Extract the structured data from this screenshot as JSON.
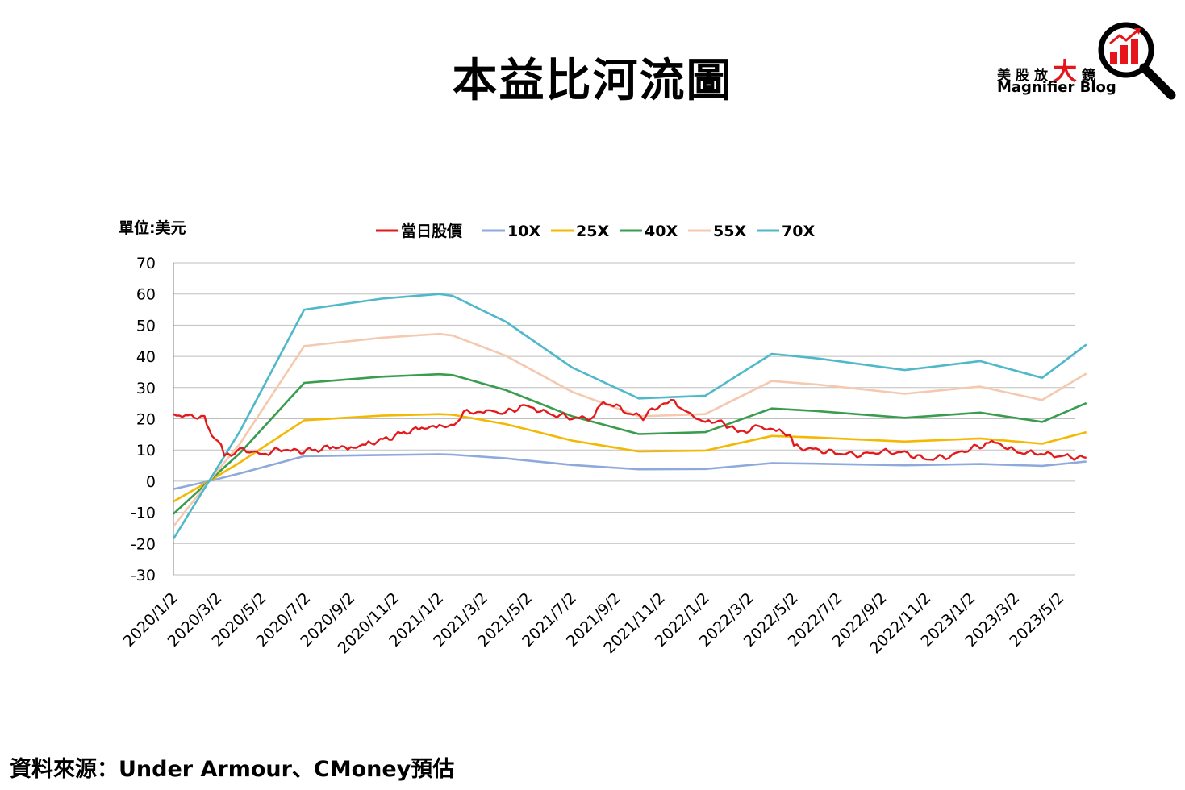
{
  "header": {
    "title": "本益比河流圖"
  },
  "logo": {
    "cn_part1": "美股放",
    "cn_big": "大",
    "cn_part2": "鏡",
    "en": "Magnifier Blog",
    "icon": "magnifier-bar-chart-icon"
  },
  "footer": {
    "source": "資料來源：Under Armour、CMoney預估"
  },
  "colors": {
    "price": "#e31a1c",
    "x10": "#8ea9db",
    "x25": "#f5b800",
    "x40": "#3a9c4e",
    "x55": "#f4c9b0",
    "x70": "#4fb8c9",
    "grid": "#bfbfbf",
    "brand_red": "#e5151b"
  },
  "chart_data": {
    "type": "line",
    "unit_label": "單位:美元",
    "ylim": [
      -30,
      70
    ],
    "yticks": [
      70,
      60,
      50,
      40,
      30,
      20,
      10,
      0,
      -10,
      -20,
      -30
    ],
    "categories": [
      "2020/1/2",
      "2020/3/2",
      "2020/5/2",
      "2020/7/2",
      "2020/9/2",
      "2020/11/2",
      "2021/1/2",
      "2021/3/2",
      "2021/5/2",
      "2021/7/2",
      "2021/9/2",
      "2021/11/2",
      "2022/1/2",
      "2022/3/2",
      "2022/5/2",
      "2022/7/2",
      "2022/9/2",
      "2022/11/2",
      "2023/1/2",
      "2023/3/2",
      "2023/5/2"
    ],
    "legend_position": "top",
    "grid": true,
    "series": [
      {
        "name": "當日股價",
        "key": "price",
        "points": [
          [
            0,
            21.5
          ],
          [
            0.2,
            20.8
          ],
          [
            0.4,
            21
          ],
          [
            0.7,
            20.5
          ],
          [
            0.8,
            16.5
          ],
          [
            1.0,
            13
          ],
          [
            1.15,
            9
          ],
          [
            1.3,
            8.5
          ],
          [
            1.5,
            10
          ],
          [
            1.8,
            9.5
          ],
          [
            2.0,
            8.5
          ],
          [
            2.3,
            10
          ],
          [
            2.5,
            10.5
          ],
          [
            2.8,
            9.5
          ],
          [
            3.2,
            10
          ],
          [
            3.6,
            11
          ],
          [
            4.0,
            10.5
          ],
          [
            4.4,
            12
          ],
          [
            4.8,
            13.5
          ],
          [
            5.2,
            15.5
          ],
          [
            5.6,
            17
          ],
          [
            6.0,
            17.5
          ],
          [
            6.4,
            18
          ],
          [
            6.55,
            22
          ],
          [
            7.0,
            22.5
          ],
          [
            7.5,
            22
          ],
          [
            7.9,
            24
          ],
          [
            8.2,
            23
          ],
          [
            8.5,
            21.5
          ],
          [
            8.8,
            21
          ],
          [
            9.0,
            20.5
          ],
          [
            9.3,
            20
          ],
          [
            9.5,
            21
          ],
          [
            9.7,
            25.5
          ],
          [
            10.0,
            24
          ],
          [
            10.3,
            21.5
          ],
          [
            10.6,
            20.5
          ],
          [
            11.0,
            25
          ],
          [
            11.3,
            25.5
          ],
          [
            11.6,
            22
          ],
          [
            12.0,
            18.5
          ],
          [
            12.3,
            19.5
          ],
          [
            12.55,
            17.5
          ],
          [
            12.8,
            15.5
          ],
          [
            13.2,
            17.5
          ],
          [
            13.6,
            16
          ],
          [
            13.9,
            15
          ],
          [
            14.0,
            11
          ],
          [
            14.5,
            10
          ],
          [
            15.0,
            9
          ],
          [
            15.5,
            8.5
          ],
          [
            16.0,
            9.5
          ],
          [
            16.5,
            9
          ],
          [
            17.0,
            7
          ],
          [
            17.5,
            8
          ],
          [
            18.0,
            10.5
          ],
          [
            18.4,
            12
          ],
          [
            18.6,
            12.5
          ],
          [
            18.9,
            10
          ],
          [
            19.2,
            9
          ],
          [
            19.5,
            9
          ],
          [
            19.8,
            8.5
          ],
          [
            20.1,
            8
          ],
          [
            20.4,
            7.5
          ],
          [
            20.6,
            7.5
          ]
        ]
      },
      {
        "name": "10X",
        "key": "x10",
        "points": [
          [
            0,
            -2.5
          ],
          [
            0.8,
            0
          ],
          [
            1.5,
            2.5
          ],
          [
            2.95,
            8
          ],
          [
            4.7,
            8.4
          ],
          [
            6.0,
            8.6
          ],
          [
            6.3,
            8.5
          ],
          [
            7.5,
            7.3
          ],
          [
            9.0,
            5.2
          ],
          [
            10.5,
            3.8
          ],
          [
            12.0,
            3.9
          ],
          [
            13.5,
            5.8
          ],
          [
            14.5,
            5.6
          ],
          [
            16.5,
            5.1
          ],
          [
            18.2,
            5.5
          ],
          [
            19.6,
            4.9
          ],
          [
            20.6,
            6.3
          ]
        ]
      },
      {
        "name": "25X",
        "key": "x25",
        "points": [
          [
            0,
            -6.5
          ],
          [
            0.8,
            0
          ],
          [
            1.5,
            6
          ],
          [
            2.95,
            19.5
          ],
          [
            4.7,
            21
          ],
          [
            6.0,
            21.5
          ],
          [
            6.3,
            21.3
          ],
          [
            7.5,
            18.3
          ],
          [
            9.0,
            13
          ],
          [
            10.5,
            9.5
          ],
          [
            12.0,
            9.8
          ],
          [
            13.5,
            14.5
          ],
          [
            14.5,
            14
          ],
          [
            16.5,
            12.7
          ],
          [
            18.2,
            13.7
          ],
          [
            19.6,
            12
          ],
          [
            20.6,
            15.7
          ]
        ]
      },
      {
        "name": "40X",
        "key": "x40",
        "points": [
          [
            0,
            -10.5
          ],
          [
            0.8,
            0
          ],
          [
            1.5,
            9
          ],
          [
            2.95,
            31.5
          ],
          [
            4.7,
            33.5
          ],
          [
            6.0,
            34.3
          ],
          [
            6.3,
            34
          ],
          [
            7.5,
            29.2
          ],
          [
            9.0,
            20.8
          ],
          [
            10.5,
            15.1
          ],
          [
            12.0,
            15.7
          ],
          [
            13.5,
            23.3
          ],
          [
            14.5,
            22.5
          ],
          [
            16.5,
            20.3
          ],
          [
            18.2,
            22
          ],
          [
            19.6,
            19
          ],
          [
            20.6,
            25
          ]
        ]
      },
      {
        "name": "55X",
        "key": "x55",
        "points": [
          [
            0,
            -14.5
          ],
          [
            0.8,
            0
          ],
          [
            1.5,
            12
          ],
          [
            2.95,
            43.3
          ],
          [
            4.7,
            46
          ],
          [
            6.0,
            47.2
          ],
          [
            6.3,
            46.7
          ],
          [
            7.5,
            40.2
          ],
          [
            9.0,
            28.6
          ],
          [
            10.5,
            20.8
          ],
          [
            12.0,
            21.5
          ],
          [
            13.5,
            32.1
          ],
          [
            14.5,
            31
          ],
          [
            16.5,
            28
          ],
          [
            18.2,
            30.3
          ],
          [
            19.6,
            26
          ],
          [
            20.6,
            34.5
          ]
        ]
      },
      {
        "name": "70X",
        "key": "x70",
        "points": [
          [
            0,
            -18.5
          ],
          [
            0.8,
            0
          ],
          [
            1.5,
            16
          ],
          [
            2.95,
            55
          ],
          [
            4.7,
            58.5
          ],
          [
            6.0,
            60
          ],
          [
            6.3,
            59.4
          ],
          [
            7.5,
            51.1
          ],
          [
            9.0,
            36.4
          ],
          [
            10.5,
            26.5
          ],
          [
            12.0,
            27.4
          ],
          [
            13.5,
            40.8
          ],
          [
            14.5,
            39.4
          ],
          [
            16.5,
            35.6
          ],
          [
            18.2,
            38.5
          ],
          [
            19.6,
            33.1
          ],
          [
            20.6,
            43.8
          ]
        ]
      }
    ]
  }
}
